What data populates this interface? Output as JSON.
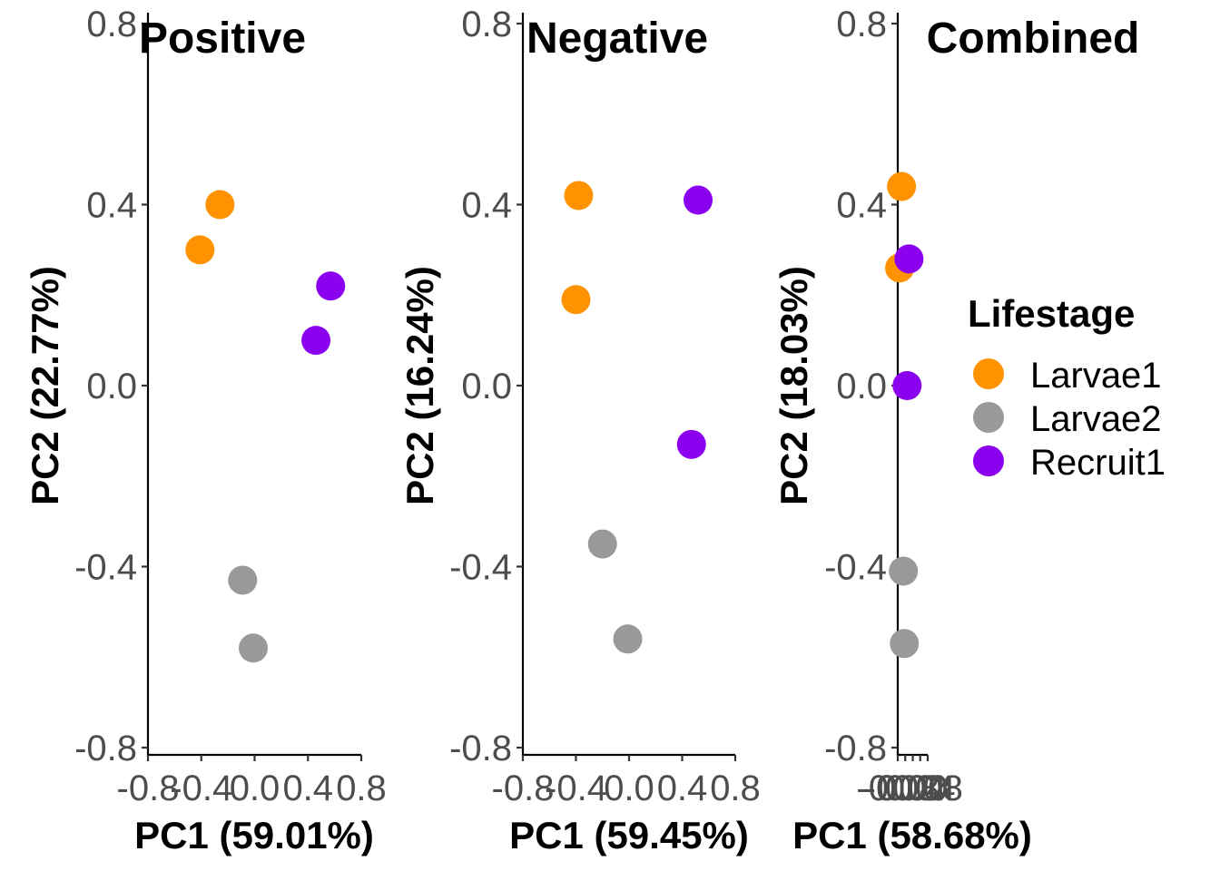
{
  "chart_data": [
    {
      "type": "scatter",
      "title": "Positive",
      "xlabel": "PC1 (59.01%)",
      "ylabel": "PC2 (22.77%)",
      "xlim": [
        -0.8,
        0.8
      ],
      "ylim": [
        -0.8,
        0.8
      ],
      "xticks": [
        "-0.8",
        "-0.4",
        "0.0",
        "0.4",
        "0.8"
      ],
      "yticks": [
        "-0.8",
        "-0.4",
        "0.0",
        "0.4",
        "0.8"
      ],
      "series": [
        {
          "name": "Larvae1",
          "points": [
            {
              "x": -0.41,
              "y": 0.3
            },
            {
              "x": -0.26,
              "y": 0.4
            }
          ]
        },
        {
          "name": "Larvae2",
          "points": [
            {
              "x": -0.09,
              "y": -0.43
            },
            {
              "x": -0.01,
              "y": -0.58
            }
          ]
        },
        {
          "name": "Recruit1",
          "points": [
            {
              "x": 0.46,
              "y": 0.1
            },
            {
              "x": 0.57,
              "y": 0.22
            }
          ]
        }
      ]
    },
    {
      "type": "scatter",
      "title": "Negative",
      "xlabel": "PC1 (59.45%)",
      "ylabel": "PC2 (16.24%)",
      "xlim": [
        -0.8,
        0.8
      ],
      "ylim": [
        -0.8,
        0.8
      ],
      "xticks": [
        "-0.8",
        "-0.4",
        "0.0",
        "0.4",
        "0.8"
      ],
      "yticks": [
        "-0.8",
        "-0.4",
        "0.0",
        "0.4",
        "0.8"
      ],
      "series": [
        {
          "name": "Larvae1",
          "points": [
            {
              "x": -0.38,
              "y": 0.42
            },
            {
              "x": -0.4,
              "y": 0.19
            }
          ]
        },
        {
          "name": "Larvae2",
          "points": [
            {
              "x": -0.2,
              "y": -0.35
            },
            {
              "x": -0.01,
              "y": -0.56
            }
          ]
        },
        {
          "name": "Recruit1",
          "points": [
            {
              "x": 0.52,
              "y": 0.41
            },
            {
              "x": 0.47,
              "y": -0.13
            }
          ]
        }
      ]
    },
    {
      "type": "scatter",
      "title": "Combined",
      "xlabel": "PC1 (58.68%)",
      "ylabel": "PC2 (18.03%)",
      "xlim": [
        -0.08,
        0.08
      ],
      "ylim": [
        -0.8,
        0.8
      ],
      "xticks": [
        "-0.08",
        "-0.04",
        "0.00",
        "0.04",
        "0.08"
      ],
      "yticks": [
        "-0.8",
        "-0.4",
        "0.0",
        "0.4",
        "0.8"
      ],
      "series": [
        {
          "name": "Larvae1",
          "points": [
            {
              "x": -0.06,
              "y": 0.44
            },
            {
              "x": -0.07,
              "y": 0.26
            }
          ]
        },
        {
          "name": "Larvae2",
          "points": [
            {
              "x": -0.05,
              "y": -0.41
            },
            {
              "x": -0.045,
              "y": -0.57
            }
          ]
        },
        {
          "name": "Recruit1",
          "points": [
            {
              "x": -0.02,
              "y": 0.28
            },
            {
              "x": -0.03,
              "y": 0.0
            }
          ]
        }
      ]
    }
  ],
  "legend": {
    "title": "Lifestage",
    "placement": "right",
    "items": [
      {
        "label": "Larvae1",
        "color": "#FF9200"
      },
      {
        "label": "Larvae2",
        "color": "#999999"
      },
      {
        "label": "Recruit1",
        "color": "#8B00EE"
      }
    ]
  }
}
